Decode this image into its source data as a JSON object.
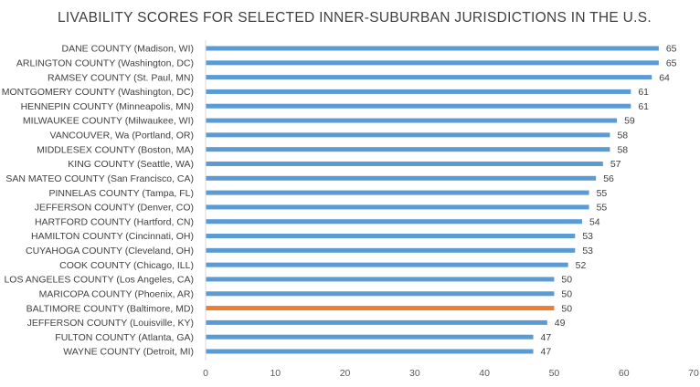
{
  "chart_data": {
    "type": "bar",
    "orientation": "horizontal",
    "title": "LIVABILITY SCORES FOR SELECTED INNER-SUBURBAN JURISDICTIONS IN THE U.S.",
    "xlabel": "",
    "ylabel": "",
    "categories": [
      "DANE COUNTY (Madison, WI)",
      "ARLINGTON COUNTY (Washington, DC)",
      "RAMSEY COUNTY (St. Paul, MN)",
      "MONTGOMERY COUNTY (Washington, DC)",
      "HENNEPIN COUNTY (Minneapolis, MN)",
      "MILWAUKEE COUNTY (Milwaukee, WI)",
      "VANCOUVER, Wa (Portland, OR)",
      "MIDDLESEX COUNTY (Boston, MA)",
      "KING COUNTY (Seattle, WA)",
      "SAN MATEO COUNTY (San Francisco, CA)",
      "PINNELAS COUNTY (Tampa, FL)",
      "JEFFERSON COUNTY (Denver, CO)",
      "HARTFORD COUNTY (Hartford, CN)",
      "HAMILTON COUNTY (Cincinnati, OH)",
      "CUYAHOGA COUNTY (Cleveland, OH)",
      "COOK COUNTY (Chicago, ILL)",
      "LOS ANGELES COUNTY (Los Angeles, CA)",
      "MARICOPA COUNTY (Phoenix, AR)",
      "BALTIMORE COUNTY (Baltimore, MD)",
      "JEFFERSON COUNTY (Louisville, KY)",
      "FULTON COUNTY (Atlanta, GA)",
      "WAYNE COUNTY (Detroit, MI)"
    ],
    "values": [
      65,
      65,
      64,
      61,
      61,
      59,
      58,
      58,
      57,
      56,
      55,
      55,
      54,
      53,
      53,
      52,
      50,
      50,
      50,
      49,
      47,
      47
    ],
    "data_labels": [
      "65",
      "65",
      "64",
      "61",
      "61",
      "59",
      "58",
      "58",
      "57",
      "56",
      "55",
      "55",
      "54",
      "53",
      "53",
      "52",
      "50",
      "50",
      "50",
      "49",
      "47",
      "47"
    ],
    "highlight_index": 18,
    "xlim": [
      0,
      70
    ],
    "xticks": [
      0,
      10,
      20,
      30,
      40,
      50,
      60,
      70
    ],
    "xtick_labels": [
      "0",
      "10",
      "20",
      "30",
      "40",
      "50",
      "60",
      "70"
    ],
    "grid": false,
    "legend": "none",
    "colors": {
      "bar": "#5b9bd5",
      "highlight": "#ed7d31",
      "axis": "#d9d9d9",
      "text": "#404040"
    }
  }
}
